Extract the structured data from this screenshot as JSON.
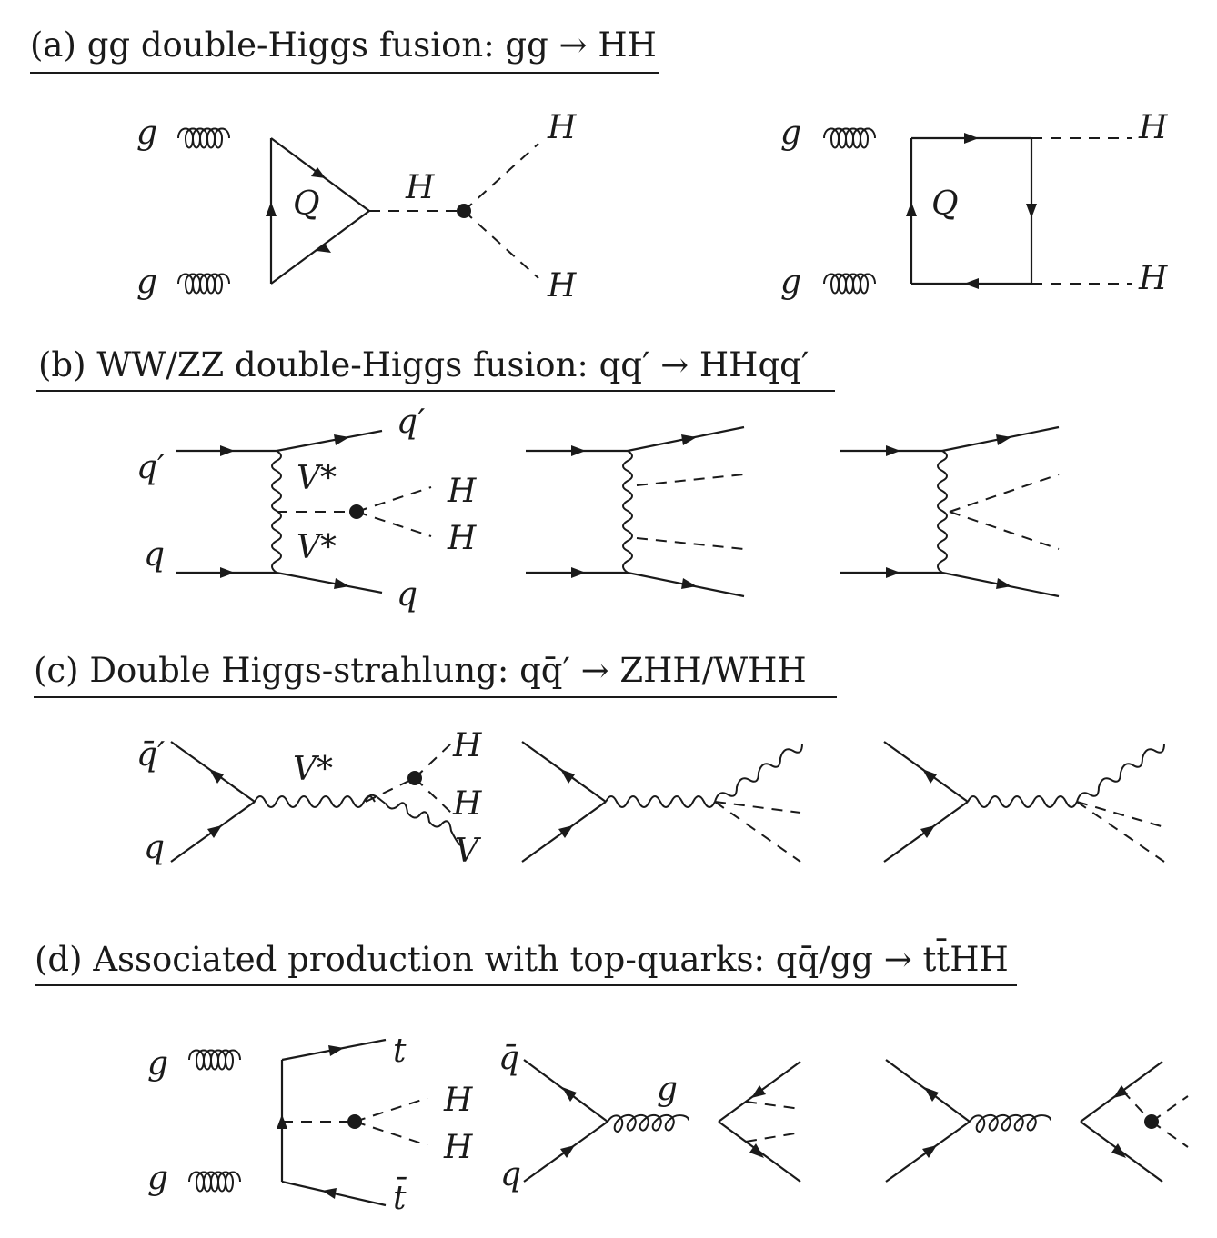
{
  "sections": {
    "a": {
      "title": "(a) gg double-Higgs fusion: gg → HH",
      "triangle": {
        "g_top": "g",
        "g_bottom": "g",
        "loop": "Q",
        "propagator": "H",
        "out_top": "H",
        "out_bottom": "H"
      },
      "box": {
        "g_top": "g",
        "g_bottom": "g",
        "loop": "Q",
        "out_top": "H",
        "out_bottom": "H"
      }
    },
    "b": {
      "title": "(b) WW/ZZ double-Higgs fusion: qq′ → HHqq′",
      "diagram1": {
        "in_top": "q′",
        "in_bottom": "q",
        "out_top": "q′",
        "out_bottom": "q",
        "v_top": "V*",
        "v_bottom": "V*",
        "h_top": "H",
        "h_bottom": "H"
      }
    },
    "c": {
      "title": "(c) Double Higgs-strahlung: qq̄′ → ZHH/WHH",
      "diagram1": {
        "in_top": "q̄′",
        "in_bottom": "q",
        "propagator": "V*",
        "h_top": "H",
        "h_bottom": "H",
        "boson": "V"
      }
    },
    "d": {
      "title": "(d) Associated production with top-quarks: qq̄/gg → tt̄HH",
      "diagram1": {
        "g_top": "g",
        "g_bottom": "g",
        "t_top": "t",
        "t_bottom": "t̄",
        "h_top": "H",
        "h_bottom": "H"
      },
      "diagram2": {
        "in_top": "q̄",
        "in_bottom": "q",
        "propagator": "g"
      }
    }
  }
}
